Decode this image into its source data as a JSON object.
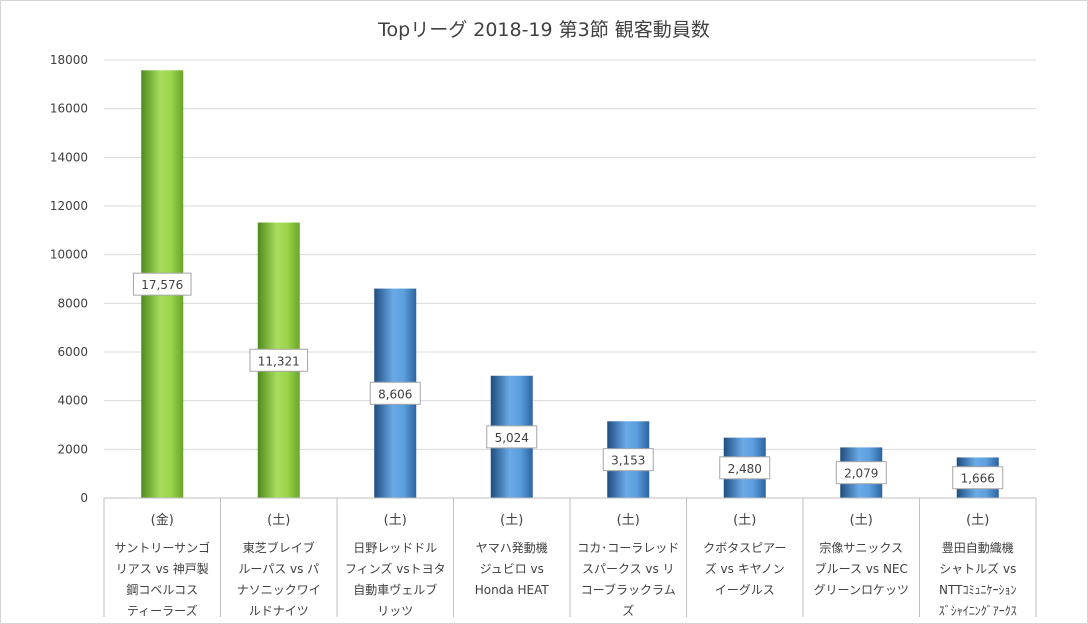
{
  "chart_data": {
    "type": "bar",
    "title": "Topリーグ 2018-19 第3節 観客動員数",
    "xlabel": "",
    "ylabel": "",
    "ylim": [
      0,
      18000
    ],
    "yticks": [
      0,
      2000,
      4000,
      6000,
      8000,
      10000,
      12000,
      14000,
      16000,
      18000
    ],
    "grid": true,
    "legend": "none",
    "categories": [
      {
        "day": "(金)",
        "lines": [
          "サントリーサンゴ",
          "リアス vs 神戸製",
          "鋼コベルコス",
          "ティーラーズ"
        ]
      },
      {
        "day": "(土)",
        "lines": [
          "東芝ブレイブ",
          "ルーパス vs パ",
          "ナソニックワイ",
          "ルドナイツ"
        ]
      },
      {
        "day": "(土)",
        "lines": [
          "日野レッドドル",
          "フィンズ vsトヨタ",
          "自動車ヴェルブ",
          "リッツ"
        ]
      },
      {
        "day": "(土)",
        "lines": [
          "ヤマハ発動機",
          "ジュビロ vs",
          "Honda HEAT"
        ]
      },
      {
        "day": "(土)",
        "lines": [
          "コカ･コーラレッド",
          "スパークス vs リ",
          "コーブラックラム",
          "ズ"
        ]
      },
      {
        "day": "(土)",
        "lines": [
          "クボタスピアー",
          "ズ vs キヤノン",
          "イーグルス"
        ]
      },
      {
        "day": "(土)",
        "lines": [
          "宗像サニックス",
          "ブルース vs NEC",
          "グリーンロケッツ"
        ]
      },
      {
        "day": "(土)",
        "lines": [
          "豊田自動織機",
          "シャトルズ vs",
          "NTTｺﾐｭﾆｹｰｼｮﾝ",
          "ｽﾞｼｬｲﾆﾝｸﾞｱｰｸｽ"
        ]
      }
    ],
    "values": [
      17576,
      11321,
      8606,
      5024,
      3153,
      2480,
      2079,
      1666
    ],
    "data_labels": [
      "17,576",
      "11,321",
      "8,606",
      "5,024",
      "3,153",
      "2,480",
      "2,079",
      "1,666"
    ],
    "bar_colors": [
      "#8dc63f",
      "#8dc63f",
      "#4a86c5",
      "#4a86c5",
      "#4a86c5",
      "#4a86c5",
      "#4a86c5",
      "#4a86c5"
    ]
  }
}
